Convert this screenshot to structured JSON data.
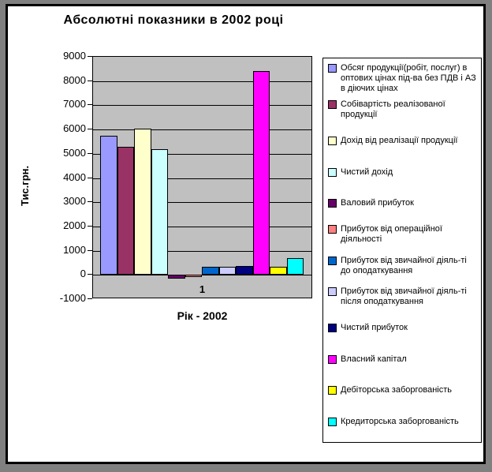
{
  "chart_data": {
    "type": "bar",
    "title": "Абсолютні показники в 2002 році",
    "categories": [
      "1"
    ],
    "xlabel": "Рік - 2002",
    "ylabel": "Тис.грн.",
    "ylim": [
      -1000,
      9000
    ],
    "ytick_step": 1000,
    "grid": true,
    "legend_position": "right",
    "plot_background": "#C0C0C0",
    "page_background": "#FFFFFF",
    "outer_background": "#808080",
    "series": [
      {
        "name": "Обсяг продукції(робіт, послуг) в оптових цінах під-ва  без ПДВ і АЗ в діючих цінах",
        "color": "#9999FF",
        "values": [
          5750
        ]
      },
      {
        "name": "Собівартість реалізованої продукції",
        "color": "#993366",
        "values": [
          5300
        ]
      },
      {
        "name": "Дохід від реалізації продукції",
        "color": "#FFFFCC",
        "values": [
          6050
        ]
      },
      {
        "name": "Чистий дохід",
        "color": "#CCFFFF",
        "values": [
          5200
        ]
      },
      {
        "name": "Валовий прибуток",
        "color": "#660066",
        "values": [
          -150
        ]
      },
      {
        "name": "Прибуток від операційної діяльності",
        "color": "#FF8080",
        "values": [
          -100
        ]
      },
      {
        "name": "Прибуток від звичайної діяль-ті до оподаткування",
        "color": "#0066CC",
        "values": [
          350
        ]
      },
      {
        "name": "Прибуток від звичайної діяль-ті після оподаткування",
        "color": "#CCCCFF",
        "values": [
          330
        ]
      },
      {
        "name": "Чистий прибуток",
        "color": "#000080",
        "values": [
          360
        ]
      },
      {
        "name": "Власний капітал",
        "color": "#FF00FF",
        "values": [
          8400
        ]
      },
      {
        "name": "Дебіторська заборгованість",
        "color": "#FFFF00",
        "values": [
          350
        ]
      },
      {
        "name": "Кредиторська заборгованість",
        "color": "#00FFFF",
        "values": [
          700
        ]
      }
    ]
  }
}
